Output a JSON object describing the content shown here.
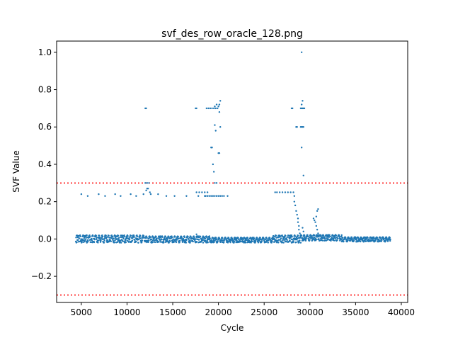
{
  "chart_data": {
    "type": "scatter",
    "title": "svf_des_row_oracle_128.png",
    "xlabel": "Cycle",
    "ylabel": "SVF Value",
    "xlim": [
      2300,
      40700
    ],
    "ylim": [
      -0.34,
      1.06
    ],
    "xticks": [
      5000,
      10000,
      15000,
      20000,
      25000,
      30000,
      35000,
      40000
    ],
    "xtick_labels": [
      "5000",
      "10000",
      "15000",
      "20000",
      "25000",
      "30000",
      "35000",
      "40000"
    ],
    "yticks": [
      -0.2,
      0.0,
      0.2,
      0.4,
      0.6,
      0.8,
      1.0
    ],
    "ytick_labels": [
      "−0.2",
      "0.0",
      "0.2",
      "0.4",
      "0.6",
      "0.8",
      "1.0"
    ],
    "grid": false,
    "series_color": "#1f77b4",
    "threshold_color": "#ff0000",
    "thresholds": [
      0.3,
      -0.3
    ],
    "baseline_segments": [
      {
        "x_start": 4400,
        "x_end": 12000,
        "y_low": -0.02,
        "y_high": 0.02
      },
      {
        "x_start": 12000,
        "x_end": 19000,
        "y_low": -0.02,
        "y_high": 0.015
      },
      {
        "x_start": 19000,
        "x_end": 26000,
        "y_low": -0.02,
        "y_high": 0.008
      },
      {
        "x_start": 26000,
        "x_end": 29000,
        "y_low": -0.02,
        "y_high": 0.02
      },
      {
        "x_start": 29000,
        "x_end": 33500,
        "y_low": -0.01,
        "y_high": 0.022
      },
      {
        "x_start": 33500,
        "x_end": 38800,
        "y_low": -0.015,
        "y_high": 0.01
      }
    ],
    "points": [
      [
        12000,
        0.7
      ],
      [
        12100,
        0.7
      ],
      [
        17500,
        0.7
      ],
      [
        17600,
        0.7
      ],
      [
        18700,
        0.7
      ],
      [
        18900,
        0.7
      ],
      [
        19100,
        0.7
      ],
      [
        19300,
        0.7
      ],
      [
        19500,
        0.7
      ],
      [
        19700,
        0.7
      ],
      [
        19900,
        0.7
      ],
      [
        19600,
        0.71
      ],
      [
        19800,
        0.72
      ],
      [
        20000,
        0.71
      ],
      [
        20100,
        0.72
      ],
      [
        20200,
        0.74
      ],
      [
        20100,
        0.68
      ],
      [
        19300,
        0.49
      ],
      [
        19200,
        0.49
      ],
      [
        19400,
        0.4
      ],
      [
        19500,
        0.36
      ],
      [
        19600,
        0.61
      ],
      [
        19700,
        0.58
      ],
      [
        19800,
        0.3
      ],
      [
        19600,
        0.3
      ],
      [
        20000,
        0.46
      ],
      [
        20100,
        0.46
      ],
      [
        20200,
        0.6
      ],
      [
        28000,
        0.7
      ],
      [
        28100,
        0.7
      ],
      [
        28500,
        0.6
      ],
      [
        28600,
        0.6
      ],
      [
        29000,
        0.7
      ],
      [
        29100,
        0.7
      ],
      [
        29200,
        0.7
      ],
      [
        29300,
        0.7
      ],
      [
        29400,
        0.7
      ],
      [
        29100,
        0.72
      ],
      [
        29200,
        0.74
      ],
      [
        29000,
        0.6
      ],
      [
        29100,
        0.6
      ],
      [
        29200,
        0.6
      ],
      [
        29300,
        0.6
      ],
      [
        29100,
        0.49
      ],
      [
        29300,
        0.34
      ],
      [
        29100,
        1.0
      ],
      [
        12000,
        0.3
      ],
      [
        12200,
        0.3
      ],
      [
        12400,
        0.3
      ],
      [
        12200,
        0.27
      ],
      [
        12300,
        0.27
      ],
      [
        12500,
        0.25
      ],
      [
        12600,
        0.24
      ],
      [
        12100,
        0.26
      ],
      [
        5000,
        0.24
      ],
      [
        5700,
        0.23
      ],
      [
        6900,
        0.24
      ],
      [
        7600,
        0.23
      ],
      [
        8700,
        0.24
      ],
      [
        9300,
        0.23
      ],
      [
        10400,
        0.24
      ],
      [
        11000,
        0.23
      ],
      [
        11800,
        0.24
      ],
      [
        13400,
        0.24
      ],
      [
        14300,
        0.23
      ],
      [
        15200,
        0.23
      ],
      [
        16500,
        0.23
      ],
      [
        17600,
        0.25
      ],
      [
        17900,
        0.25
      ],
      [
        18200,
        0.25
      ],
      [
        18500,
        0.25
      ],
      [
        18800,
        0.25
      ],
      [
        17800,
        0.23
      ],
      [
        18500,
        0.23
      ],
      [
        18600,
        0.23
      ],
      [
        18800,
        0.23
      ],
      [
        19000,
        0.23
      ],
      [
        19200,
        0.23
      ],
      [
        19400,
        0.23
      ],
      [
        19600,
        0.23
      ],
      [
        19800,
        0.23
      ],
      [
        20000,
        0.23
      ],
      [
        20200,
        0.23
      ],
      [
        20400,
        0.23
      ],
      [
        20600,
        0.23
      ],
      [
        21000,
        0.23
      ],
      [
        26200,
        0.25
      ],
      [
        26400,
        0.25
      ],
      [
        26700,
        0.25
      ],
      [
        27000,
        0.25
      ],
      [
        27300,
        0.25
      ],
      [
        27600,
        0.25
      ],
      [
        27900,
        0.25
      ],
      [
        28200,
        0.25
      ],
      [
        28300,
        0.23
      ],
      [
        28300,
        0.2
      ],
      [
        28400,
        0.18
      ],
      [
        28500,
        0.15
      ],
      [
        28600,
        0.13
      ],
      [
        28700,
        0.11
      ],
      [
        28700,
        0.09
      ],
      [
        28800,
        0.07
      ],
      [
        28800,
        0.05
      ],
      [
        28900,
        0.03
      ],
      [
        29200,
        0.06
      ],
      [
        29300,
        0.04
      ],
      [
        29400,
        0.01
      ],
      [
        30400,
        0.11
      ],
      [
        30500,
        0.1
      ],
      [
        30600,
        0.09
      ],
      [
        30700,
        0.12
      ],
      [
        30800,
        0.15
      ],
      [
        30900,
        0.16
      ],
      [
        30700,
        0.07
      ],
      [
        30800,
        0.05
      ],
      [
        30900,
        0.03
      ],
      [
        31000,
        0.02
      ],
      [
        30500,
        0.02
      ],
      [
        17600,
        0.025
      ],
      [
        17600,
        0.01
      ],
      [
        5200,
        0.02
      ],
      [
        5600,
        0.02
      ],
      [
        22000,
        -0.01
      ],
      [
        26500,
        0.01
      ],
      [
        28000,
        -0.02
      ],
      [
        28500,
        0.0
      ],
      [
        29000,
        -0.02
      ],
      [
        31200,
        0.02
      ],
      [
        32000,
        0.022
      ],
      [
        32800,
        0.022
      ]
    ]
  }
}
